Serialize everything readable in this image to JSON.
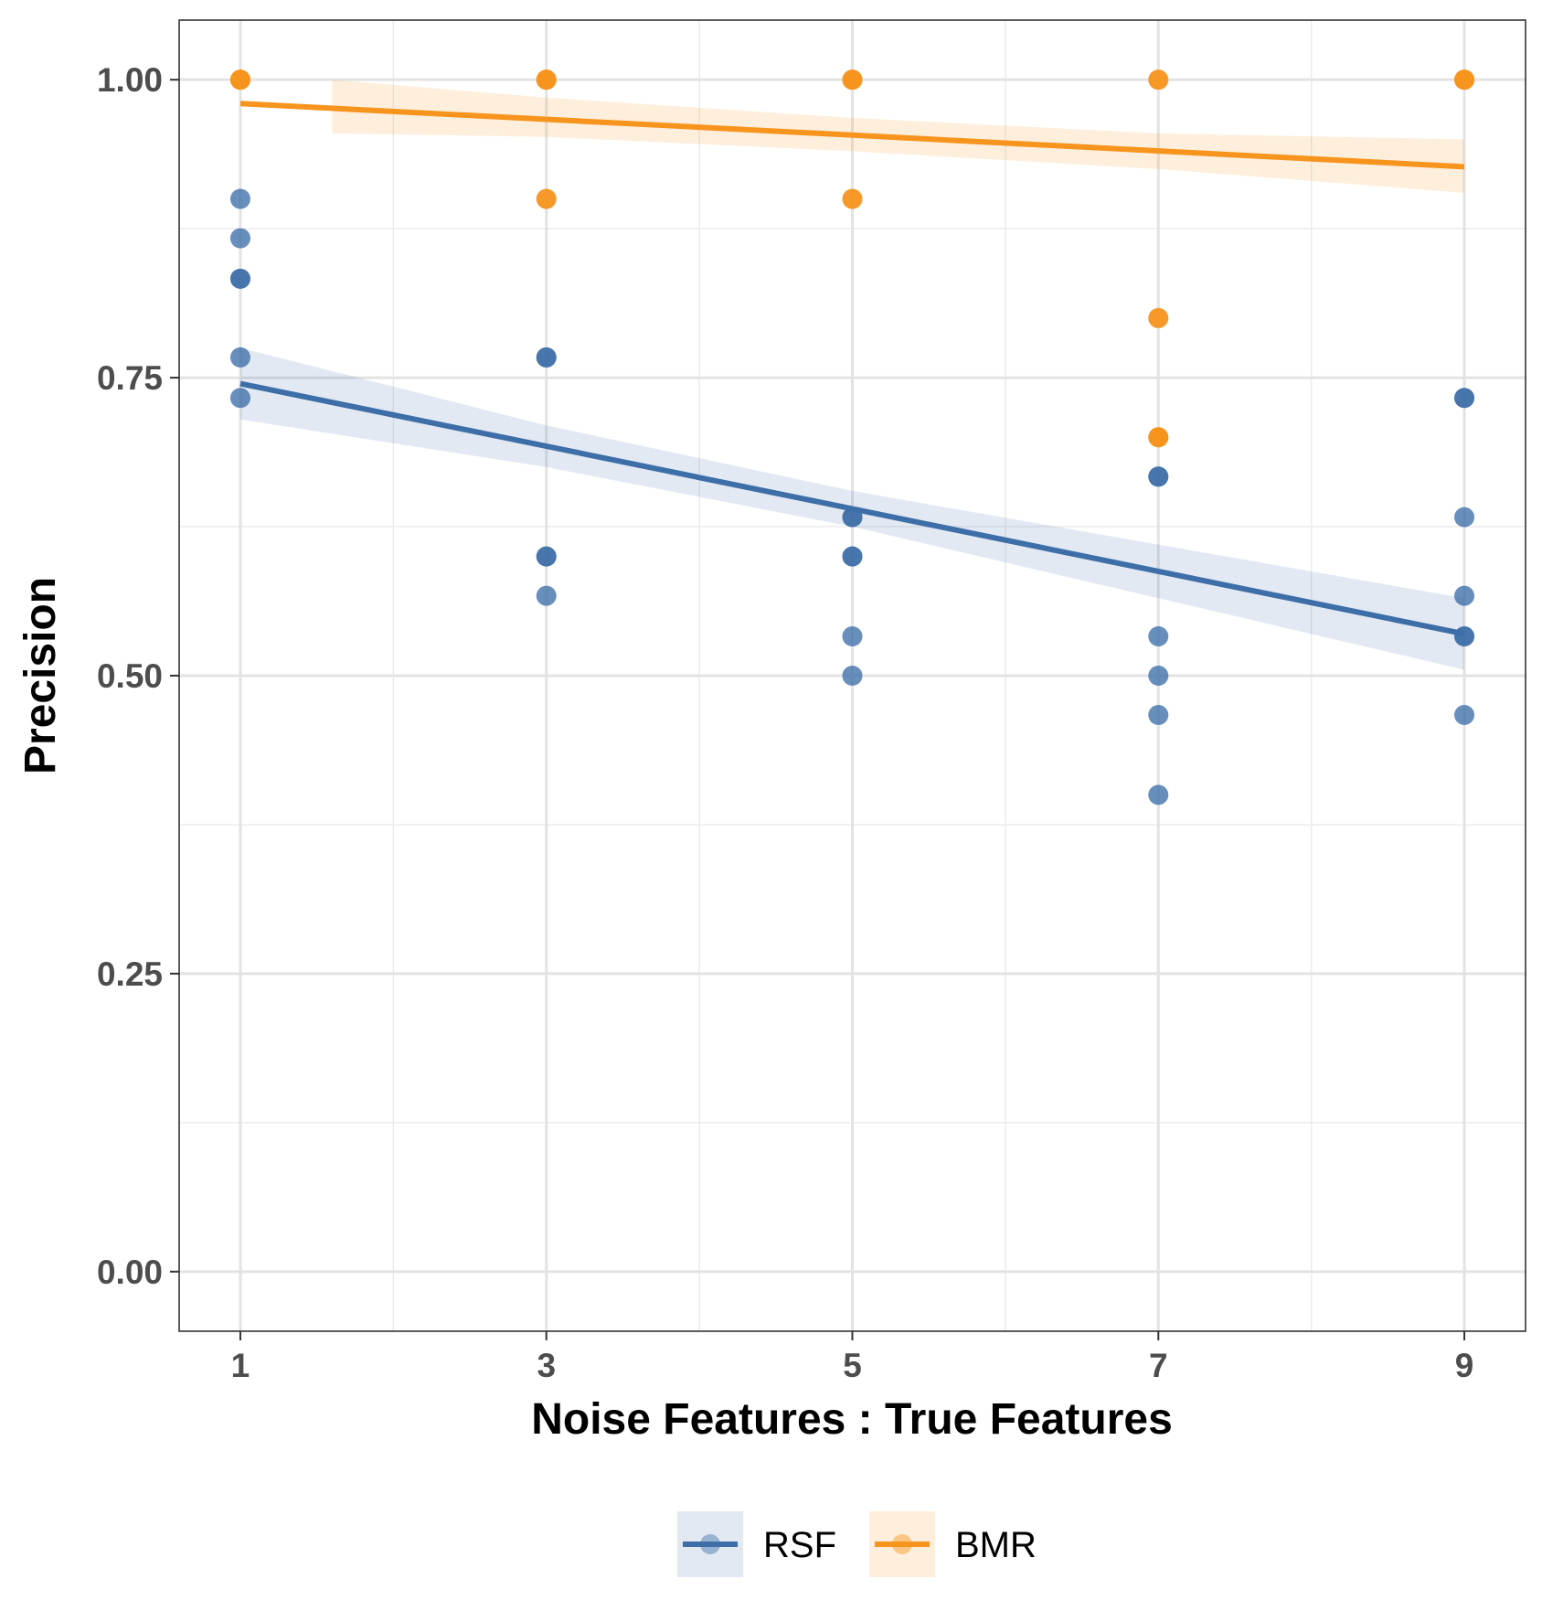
{
  "chart_data": {
    "type": "scatter",
    "xlabel": "Noise Features : True Features",
    "ylabel": "Precision",
    "xlim": [
      0.6,
      9.4
    ],
    "ylim": [
      -0.05,
      1.05
    ],
    "x_ticks": [
      1,
      3,
      5,
      7,
      9
    ],
    "x_tick_labels": [
      "1",
      "3",
      "5",
      "7",
      "9"
    ],
    "y_ticks": [
      0,
      0.25,
      0.5,
      0.75,
      1.0
    ],
    "y_tick_labels": [
      "0.00",
      "0.25",
      "0.50",
      "0.75",
      "1.00"
    ],
    "grid": true,
    "legend_position": "bottom",
    "series": [
      {
        "name": "RSF",
        "color": "#3d6ea8",
        "points": [
          [
            1,
            0.9
          ],
          [
            1,
            0.867
          ],
          [
            1,
            0.833
          ],
          [
            1,
            0.833
          ],
          [
            1,
            0.767
          ],
          [
            1,
            0.733
          ],
          [
            3,
            0.767
          ],
          [
            3,
            0.767
          ],
          [
            3,
            0.6
          ],
          [
            3,
            0.6
          ],
          [
            3,
            0.567
          ],
          [
            5,
            0.633
          ],
          [
            5,
            0.633
          ],
          [
            5,
            0.6
          ],
          [
            5,
            0.6
          ],
          [
            5,
            0.533
          ],
          [
            5,
            0.5
          ],
          [
            7,
            0.667
          ],
          [
            7,
            0.667
          ],
          [
            7,
            0.533
          ],
          [
            7,
            0.5
          ],
          [
            7,
            0.467
          ],
          [
            7,
            0.4
          ],
          [
            9,
            0.733
          ],
          [
            9,
            0.733
          ],
          [
            9,
            0.633
          ],
          [
            9,
            0.567
          ],
          [
            9,
            0.533
          ],
          [
            9,
            0.533
          ],
          [
            9,
            0.467
          ]
        ],
        "fit": {
          "x": [
            1,
            9
          ],
          "y": [
            0.745,
            0.535
          ]
        },
        "band": {
          "x": [
            1,
            3,
            5,
            7,
            9
          ],
          "lower": [
            0.715,
            0.675,
            0.625,
            0.565,
            0.505
          ],
          "upper": [
            0.775,
            0.71,
            0.655,
            0.61,
            0.565
          ]
        }
      },
      {
        "name": "BMR",
        "color": "#f7941d",
        "points": [
          [
            1,
            1.0
          ],
          [
            1,
            1.0
          ],
          [
            3,
            1.0
          ],
          [
            3,
            1.0
          ],
          [
            3,
            0.9
          ],
          [
            5,
            1.0
          ],
          [
            5,
            1.0
          ],
          [
            5,
            0.9
          ],
          [
            7,
            1.0
          ],
          [
            7,
            0.8
          ],
          [
            7,
            0.7
          ],
          [
            7,
            0.7
          ],
          [
            9,
            1.0
          ],
          [
            9,
            1.0
          ]
        ],
        "fit": {
          "x": [
            1,
            9
          ],
          "y": [
            0.98,
            0.927
          ]
        },
        "band": {
          "x": [
            1.6,
            3,
            5,
            7,
            9
          ],
          "lower": [
            0.955,
            0.952,
            0.94,
            0.925,
            0.905
          ],
          "upper": [
            1.0,
            0.985,
            0.968,
            0.955,
            0.95
          ]
        }
      }
    ]
  }
}
